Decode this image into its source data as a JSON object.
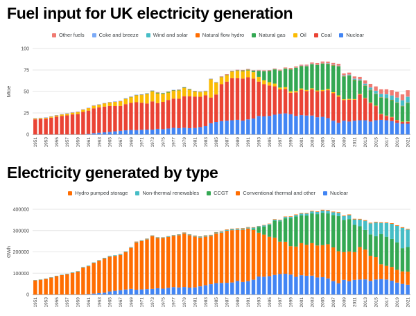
{
  "page": {
    "background": "#ffffff",
    "text_color": "#444444",
    "grid_color": "#e6e6e6",
    "axis_color": "#8a8a8a"
  },
  "chart_data": [
    {
      "type": "bar",
      "stacked": true,
      "title": "Fuel input for UK electricity generation",
      "y_axis": {
        "label": "Mtoe",
        "ticks": [
          0,
          25,
          50,
          75,
          100
        ],
        "max": 100
      },
      "n_bars": 71,
      "year_start": 1951,
      "x_ticks": [
        1951,
        1953,
        1955,
        1957,
        1959,
        1961,
        1963,
        1965,
        1967,
        1969,
        1971,
        1973,
        1975,
        1977,
        1979,
        1981,
        1983,
        1985,
        1987,
        1989,
        1991,
        1993,
        1995,
        1997,
        1999,
        2001,
        2003,
        2005,
        2007,
        2009,
        2011,
        2013,
        2015,
        2017,
        2019,
        2021
      ],
      "legend_note": "legend lists series top-of-stack first",
      "series": [
        {
          "name": "Nuclear",
          "color": "#4285f4",
          "values": [
            0,
            0,
            0,
            0,
            0,
            0,
            0,
            0,
            0,
            0,
            0.7,
            1.4,
            1.9,
            2.4,
            3.0,
            3.6,
            4.2,
            4.8,
            5.2,
            5.0,
            5.4,
            5.6,
            5.6,
            6.5,
            6.1,
            6.9,
            7.7,
            7.3,
            7.8,
            7.3,
            7.5,
            8.5,
            9.7,
            13.0,
            14.5,
            15.5,
            16.0,
            16.5,
            17.0,
            16.0,
            17.5,
            18.5,
            21.5,
            21.0,
            21.5,
            23.0,
            24.0,
            24.5,
            23.5,
            21.5,
            22.5,
            22.0,
            22.0,
            20.0,
            20.5,
            19.0,
            16.0,
            13.5,
            16.0,
            15.0,
            16.0,
            16.5,
            16.5,
            15.0,
            16.5,
            17.0,
            16.5,
            15.5,
            13.5,
            12.5,
            12.5
          ]
        },
        {
          "name": "Coal",
          "color": "#ea4335",
          "values": [
            17.6,
            17.9,
            18.3,
            19.5,
            20.7,
            21.6,
            22.2,
            23.3,
            23.7,
            26.2,
            27.0,
            29.0,
            29.5,
            30.0,
            30.2,
            29.5,
            29.0,
            30.5,
            31.5,
            32.5,
            31.5,
            30.5,
            32.8,
            30.0,
            31.8,
            33.2,
            34.0,
            34.3,
            36.5,
            37.0,
            36.5,
            35.4,
            36.0,
            30.0,
            32.0,
            43.0,
            45.5,
            49.0,
            48.5,
            49.0,
            49.0,
            46.5,
            40.0,
            37.5,
            35.5,
            33.0,
            28.5,
            28.5,
            25.0,
            27.5,
            29.5,
            28.5,
            30.5,
            30.0,
            30.0,
            32.5,
            32.0,
            30.5,
            24.0,
            25.5,
            24.5,
            30.0,
            25.5,
            21.5,
            16.5,
            6.5,
            5.0,
            4.5,
            3.0,
            2.0,
            2.2
          ]
        },
        {
          "name": "Oil",
          "color": "#fbbc04",
          "values": [
            0.8,
            0.9,
            1.0,
            1.1,
            1.3,
            1.5,
            1.7,
            1.9,
            2.2,
            2.4,
            2.7,
            2.9,
            3.1,
            3.5,
            3.9,
            4.7,
            5.3,
            6.0,
            6.7,
            8.0,
            9.0,
            10.7,
            11.7,
            11.2,
            9.2,
            8.7,
            9.0,
            9.7,
            9.7,
            7.7,
            5.7,
            5.2,
            4.2,
            21.0,
            13.5,
            8.0,
            7.5,
            7.5,
            8.5,
            8.5,
            8.0,
            7.5,
            5.5,
            4.5,
            3.8,
            3.2,
            2.1,
            2.0,
            1.7,
            1.6,
            1.5,
            1.3,
            1.2,
            1.2,
            1.3,
            1.4,
            1.2,
            1.5,
            1.0,
            0.9,
            0.7,
            0.6,
            0.5,
            0.5,
            0.5,
            0.5,
            0.4,
            0.4,
            0.4,
            0.4,
            0.4
          ]
        },
        {
          "name": "Natural gas",
          "color": "#34a853",
          "values": [
            0,
            0,
            0,
            0,
            0,
            0,
            0,
            0,
            0,
            0,
            0,
            0,
            0,
            0,
            0,
            0,
            0,
            0.1,
            0.1,
            0.1,
            0.3,
            0.5,
            0.6,
            0.8,
            0.8,
            0.7,
            0.6,
            0.5,
            0.5,
            0.4,
            0.3,
            0.3,
            0.3,
            0.3,
            0.3,
            0.3,
            0.3,
            0.3,
            0.5,
            0.7,
            0.8,
            1.5,
            7.0,
            10.5,
            13.0,
            16.5,
            19.5,
            21.5,
            25.5,
            27.0,
            26.0,
            27.5,
            28.0,
            29.5,
            30.5,
            29.0,
            31.0,
            33.5,
            26.5,
            27.0,
            22.0,
            15.0,
            14.0,
            14.5,
            13.5,
            19.0,
            20.0,
            19.5,
            20.0,
            18.0,
            21.5
          ]
        },
        {
          "name": "Natural flow hydro",
          "color": "#ff6d01",
          "values": [
            0.2,
            0.2,
            0.2,
            0.2,
            0.2,
            0.2,
            0.3,
            0.3,
            0.3,
            0.3,
            0.3,
            0.3,
            0.3,
            0.3,
            0.3,
            0.3,
            0.3,
            0.3,
            0.3,
            0.3,
            0.3,
            0.3,
            0.3,
            0.3,
            0.3,
            0.3,
            0.3,
            0.3,
            0.3,
            0.3,
            0.4,
            0.4,
            0.4,
            0.4,
            0.4,
            0.4,
            0.4,
            0.4,
            0.4,
            0.4,
            0.4,
            0.4,
            0.4,
            0.4,
            0.4,
            0.3,
            0.4,
            0.4,
            0.5,
            0.4,
            0.3,
            0.4,
            0.3,
            0.4,
            0.4,
            0.4,
            0.4,
            0.4,
            0.4,
            0.3,
            0.5,
            0.4,
            0.4,
            0.4,
            0.4,
            0.4,
            0.4,
            0.4,
            0.4,
            0.4,
            0.4
          ]
        },
        {
          "name": "Wind and solar",
          "color": "#46bdc6",
          "values": [
            0,
            0,
            0,
            0,
            0,
            0,
            0,
            0,
            0,
            0,
            0,
            0,
            0,
            0,
            0,
            0,
            0,
            0,
            0,
            0,
            0,
            0,
            0,
            0,
            0,
            0,
            0,
            0,
            0,
            0,
            0,
            0,
            0,
            0,
            0,
            0,
            0,
            0,
            0,
            0,
            0,
            0,
            0,
            0,
            0,
            0,
            0,
            0,
            0,
            0,
            0,
            0.1,
            0.1,
            0.2,
            0.2,
            0.3,
            0.3,
            0.4,
            0.6,
            0.7,
            1.1,
            1.5,
            2.1,
            2.6,
            3.3,
            3.6,
            4.3,
            4.9,
            5.5,
            6.3,
            6.8
          ]
        },
        {
          "name": "Coke and breeze",
          "color": "#7baaf7",
          "values": [
            0.4,
            0.4,
            0.4,
            0.4,
            0.4,
            0.4,
            0.4,
            0.4,
            0.4,
            0.4,
            0.4,
            0.4,
            0.4,
            0.4,
            0.4,
            0.4,
            0.4,
            0.4,
            0.4,
            0.4,
            0.3,
            0.3,
            0.3,
            0.3,
            0.3,
            0.3,
            0.3,
            0.3,
            0.3,
            0.3,
            0.3,
            0.3,
            0.3,
            0.3,
            0.3,
            0.3,
            0.3,
            0.3,
            0.3,
            0.3,
            0.3,
            0.3,
            0.3,
            0.3,
            0.3,
            0.3,
            0.3,
            0.3,
            0.3,
            0.3,
            0.3,
            0.3,
            0.3,
            0.3,
            0.3,
            0.3,
            0.3,
            0.3,
            0.3,
            0.3,
            0.2,
            0.2,
            0.2,
            0.2,
            0.2,
            0.2,
            0.2,
            0.2,
            0.2,
            0.2,
            0.2
          ]
        },
        {
          "name": "Other fuels",
          "color": "#f07b72",
          "values": [
            0,
            0,
            0,
            0,
            0,
            0,
            0,
            0,
            0,
            0,
            0,
            0,
            0,
            0,
            0,
            0,
            0,
            0,
            0,
            0,
            0,
            0,
            0,
            0,
            0,
            0,
            0,
            0,
            0,
            0,
            0,
            0,
            0,
            0,
            0,
            0.1,
            0.1,
            0.2,
            0.2,
            0.2,
            0.3,
            0.3,
            0.4,
            0.4,
            0.5,
            0.5,
            0.6,
            0.7,
            0.8,
            0.9,
            1.0,
            1.1,
            1.3,
            1.5,
            1.7,
            1.9,
            2.0,
            2.1,
            2.2,
            2.3,
            2.5,
            2.8,
            3.6,
            4.2,
            5.0,
            5.3,
            5.7,
            6.1,
            6.5,
            6.8,
            7.5
          ]
        }
      ]
    },
    {
      "type": "bar",
      "stacked": true,
      "title": "Electricity generated by type",
      "y_axis": {
        "label": "GWh",
        "ticks": [
          0,
          100000,
          200000,
          300000,
          400000
        ],
        "max": 400000
      },
      "n_bars": 71,
      "year_start": 1951,
      "x_ticks": [
        1951,
        1953,
        1955,
        1957,
        1959,
        1961,
        1963,
        1965,
        1967,
        1969,
        1971,
        1973,
        1975,
        1977,
        1979,
        1981,
        1983,
        1985,
        1987,
        1989,
        1991,
        1993,
        1995,
        1997,
        1999,
        2001,
        2003,
        2005,
        2007,
        2009,
        2011,
        2013,
        2015,
        2017,
        2019,
        2021
      ],
      "legend_note": "legend lists series top-of-stack first",
      "series": [
        {
          "name": "Nuclear",
          "color": "#4285f4",
          "values": [
            0,
            0,
            0,
            0,
            0,
            0,
            0,
            0,
            0,
            0,
            2000,
            4500,
            6500,
            8500,
            14500,
            17500,
            20500,
            23500,
            26500,
            22500,
            24000,
            25500,
            26500,
            29500,
            27500,
            31500,
            35000,
            33000,
            35500,
            32500,
            33500,
            38500,
            43500,
            48500,
            53500,
            54500,
            55000,
            56500,
            63500,
            59000,
            62500,
            69500,
            84500,
            83500,
            86000,
            92000,
            96000,
            97500,
            93500,
            83000,
            90500,
            88000,
            88500,
            80000,
            81500,
            75500,
            63000,
            52500,
            69000,
            62000,
            69000,
            70500,
            71000,
            64000,
            70500,
            72000,
            70500,
            65000,
            56000,
            50000,
            46000
          ]
        },
        {
          "name": "Conventional thermal and other",
          "color": "#ff6d01",
          "values": [
            66500,
            69500,
            73500,
            79500,
            86500,
            91500,
            95500,
            102000,
            108000,
            126500,
            131000,
            143500,
            152500,
            160500,
            163500,
            163500,
            165500,
            175500,
            192500,
            222500,
            227000,
            233500,
            247500,
            235500,
            237500,
            238500,
            240000,
            245500,
            251500,
            246000,
            238500,
            229000,
            228500,
            226000,
            233500,
            236000,
            244000,
            245500,
            240000,
            245500,
            247500,
            233500,
            205500,
            197500,
            185000,
            175000,
            152000,
            150000,
            133500,
            142000,
            150500,
            145000,
            152500,
            150000,
            150000,
            160500,
            158000,
            150500,
            130000,
            140000,
            130000,
            152500,
            140000,
            118000,
            105000,
            70000,
            64000,
            64500,
            60000,
            58500,
            61500
          ]
        },
        {
          "name": "CCGT",
          "color": "#34a853",
          "values": [
            0,
            0,
            0,
            0,
            0,
            0,
            0,
            0,
            0,
            0,
            0,
            0,
            0,
            0,
            0,
            0,
            0,
            0,
            0,
            0,
            0,
            0,
            0,
            0,
            0,
            0,
            0,
            0,
            0,
            0,
            0,
            0,
            0,
            0,
            0,
            0,
            0,
            0,
            0,
            0,
            0,
            5500,
            25500,
            38500,
            55000,
            80000,
            96000,
            110000,
            131000,
            141000,
            131000,
            138000,
            140000,
            147000,
            152000,
            145000,
            152000,
            165000,
            151000,
            152000,
            128000,
            97500,
            92000,
            100000,
            98000,
            142000,
            136500,
            131000,
            129000,
            109000,
            115500
          ]
        },
        {
          "name": "Non-thermal renewables",
          "color": "#46bdc6",
          "values": [
            1400,
            1400,
            1500,
            1600,
            1600,
            1800,
            1900,
            2100,
            2100,
            2600,
            2600,
            2600,
            2600,
            3100,
            3300,
            3600,
            3600,
            3100,
            2900,
            3100,
            2800,
            2800,
            3000,
            3200,
            3000,
            2900,
            3100,
            3300,
            3400,
            3500,
            3800,
            4100,
            4400,
            4000,
            4300,
            4600,
            4400,
            4900,
            4900,
            5300,
            4600,
            5500,
            4900,
            5100,
            5000,
            4500,
            5000,
            6000,
            6500,
            7000,
            8000,
            9000,
            9000,
            10000,
            11000,
            12000,
            13000,
            15000,
            17500,
            18500,
            25500,
            31500,
            43000,
            52000,
            64500,
            52000,
            64500,
            71500,
            77500,
            95500,
            82000
          ]
        },
        {
          "name": "Hydro pumped storage",
          "color": "#ff6d01",
          "values": [
            0,
            0,
            0,
            0,
            0,
            0,
            0,
            0,
            0,
            0,
            0,
            0,
            0,
            0,
            0,
            0,
            300,
            400,
            500,
            500,
            600,
            700,
            800,
            800,
            900,
            1000,
            1000,
            1100,
            1200,
            1100,
            1200,
            1300,
            1500,
            1600,
            1700,
            1800,
            2100,
            2200,
            2100,
            2100,
            1900,
            1800,
            1600,
            1700,
            1800,
            2000,
            2200,
            2300,
            2400,
            2500,
            2700,
            2700,
            2800,
            2800,
            2800,
            2900,
            3000,
            3100,
            3000,
            3100,
            2900,
            2900,
            2900,
            2900,
            2900,
            2800,
            2900,
            2900,
            2900,
            2900,
            3000
          ]
        }
      ]
    }
  ]
}
